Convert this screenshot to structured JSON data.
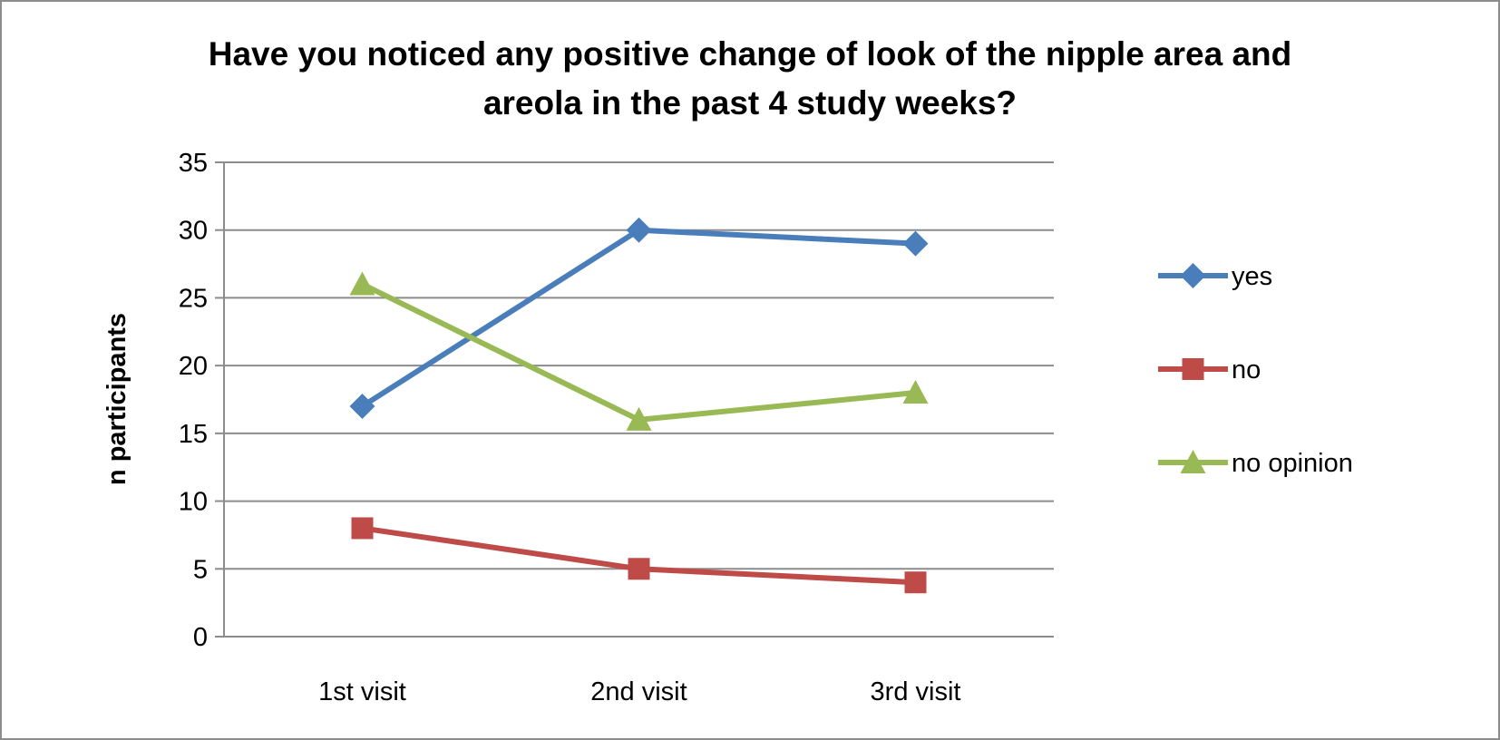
{
  "chart_data": {
    "type": "line",
    "title_lines": [
      "Have you noticed any positive change of look of the nipple area and",
      "areola in the past 4 study weeks?"
    ],
    "xlabel": "",
    "ylabel": "n participants",
    "categories": [
      "1st visit",
      "2nd visit",
      "3rd visit"
    ],
    "ylim": [
      0,
      35
    ],
    "yticks": [
      0,
      5,
      10,
      15,
      20,
      25,
      30,
      35
    ],
    "grid": true,
    "legend_position": "right",
    "series": [
      {
        "name": "yes",
        "values": [
          17,
          30,
          29
        ],
        "color": "#4a7ebb",
        "marker": "diamond"
      },
      {
        "name": "no",
        "values": [
          8,
          5,
          4
        ],
        "color": "#be4b48",
        "marker": "square"
      },
      {
        "name": "no opinion",
        "values": [
          26,
          16,
          18
        ],
        "color": "#98b954",
        "marker": "triangle"
      }
    ]
  }
}
